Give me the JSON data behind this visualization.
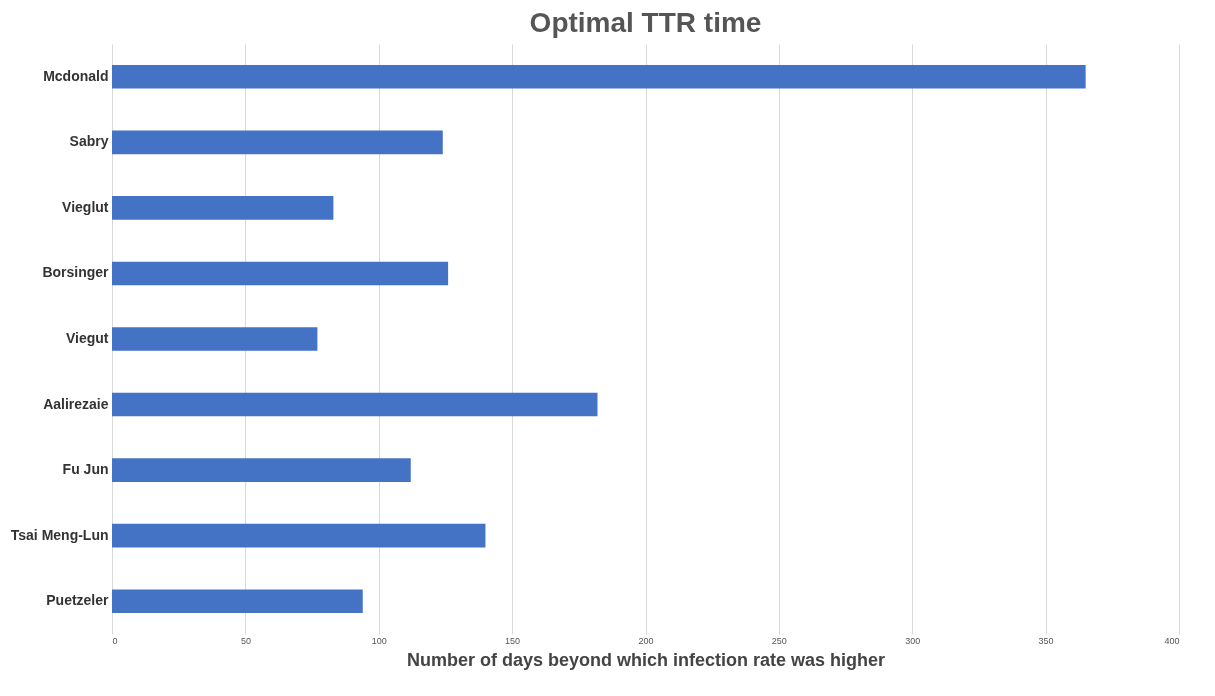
{
  "chart_data": {
    "type": "bar",
    "orientation": "horizontal",
    "title": "Optimal TTR time",
    "xlabel": "Number of days beyond which infection rate was higher",
    "categories": [
      "Mcdonald",
      "Sabry",
      "Vieglut",
      "Borsinger",
      "Viegut",
      "Aalirezaie",
      "Fu Jun",
      "Tsai Meng-Lun",
      "Puetzeler"
    ],
    "values": [
      365,
      124,
      83,
      126,
      77,
      182,
      112,
      140,
      94
    ],
    "color": "#4472c4",
    "xlim": [
      0,
      400
    ],
    "xticks": [
      0,
      50,
      100,
      150,
      200,
      250,
      300,
      350,
      400
    ],
    "grid": "x"
  }
}
